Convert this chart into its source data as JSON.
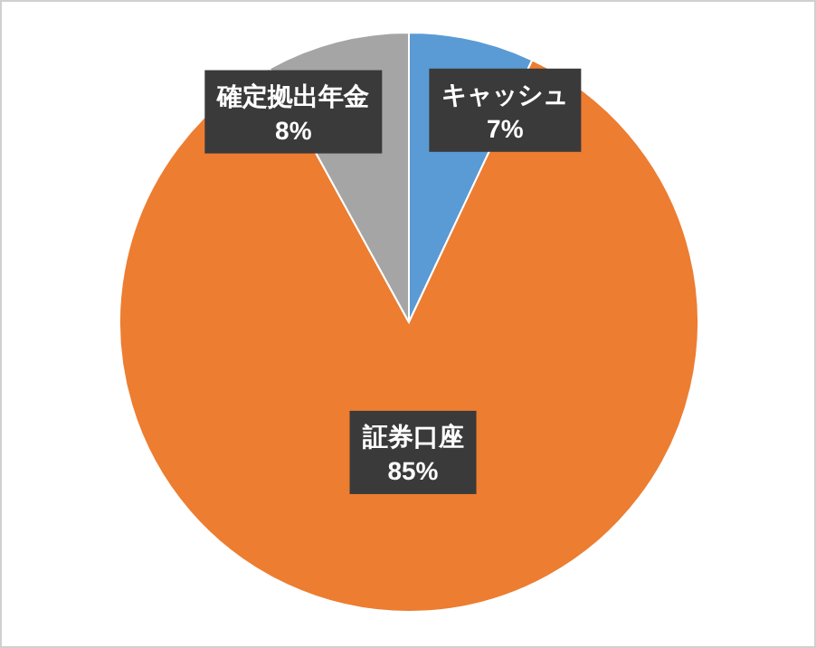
{
  "chart_data": {
    "type": "pie",
    "categories": [
      "キャッシュ",
      "証券口座",
      "確定拠出年金"
    ],
    "values": [
      7,
      85,
      8
    ],
    "colors": [
      "#5b9bd5",
      "#ed7d31",
      "#a5a5a5"
    ],
    "value_labels": [
      "7%",
      "85%",
      "8%"
    ]
  }
}
